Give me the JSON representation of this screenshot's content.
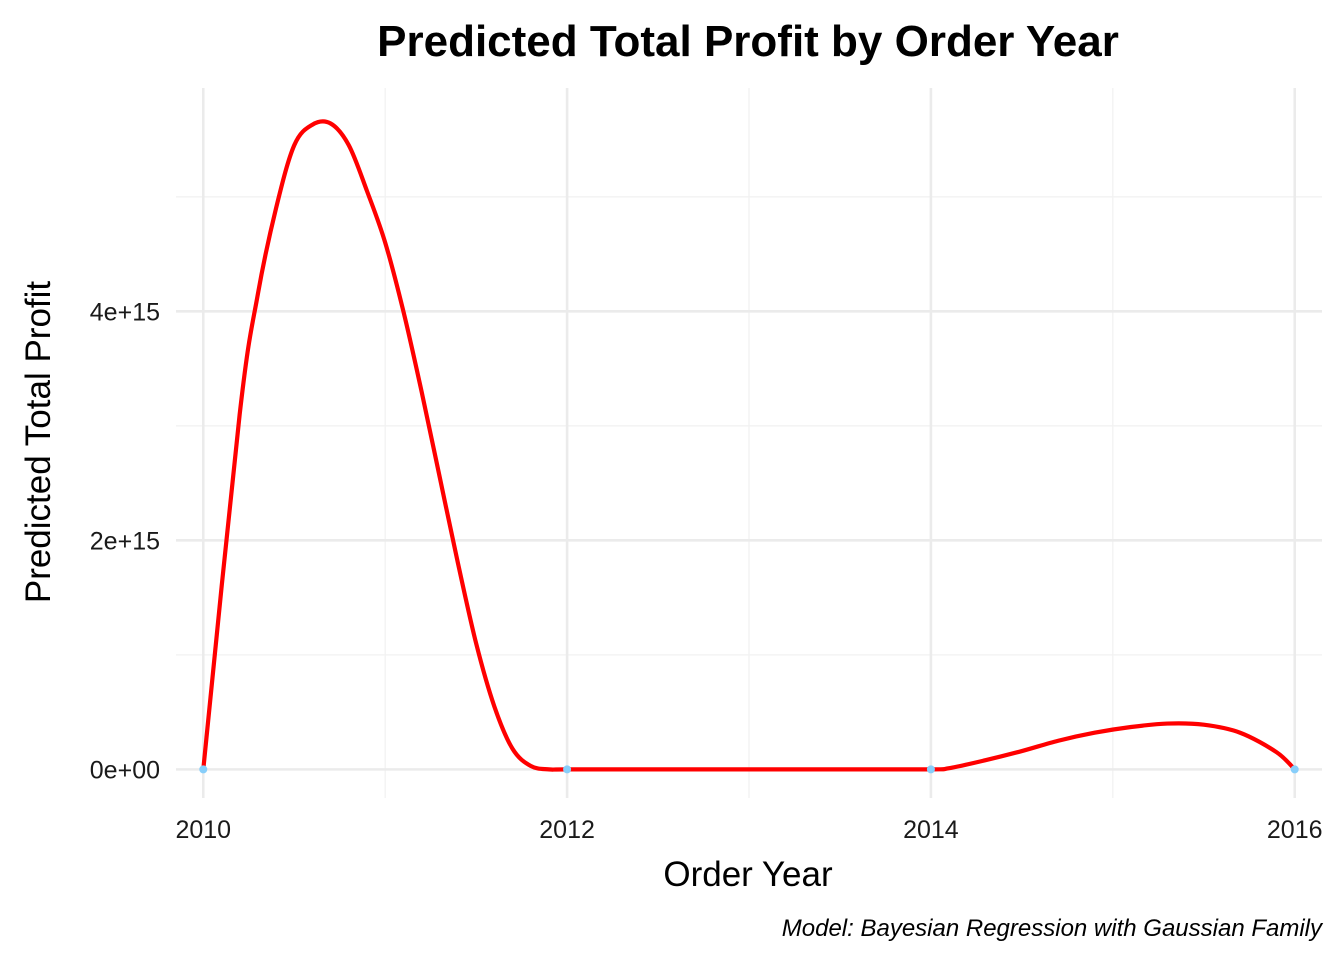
{
  "chart_data": {
    "type": "line",
    "title": "Predicted Total Profit by Order Year",
    "xlabel": "Order Year",
    "ylabel": "Predicted Total Profit",
    "caption": "Model: Bayesian Regression with Gaussian Family",
    "xlim": [
      2009.85,
      2016.15
    ],
    "ylim": [
      -250000000000000.0,
      5950000000000000.0
    ],
    "x_ticks": [
      2010,
      2012,
      2014,
      2016
    ],
    "x_tick_labels": [
      "2010",
      "2012",
      "2014",
      "2016"
    ],
    "y_ticks": [
      0,
      2000000000000000.0,
      4000000000000000.0
    ],
    "y_tick_labels": [
      "0e+00",
      "2e+15",
      "4e+15"
    ],
    "x_minor_ticks": [
      2011,
      2013,
      2015
    ],
    "y_minor_ticks": [
      1000000000000000.0,
      3000000000000000.0,
      5000000000000000.0
    ],
    "grid": true,
    "legend": "none",
    "colors": {
      "line": "#ff0000",
      "points": "#87cefa",
      "grid": "#ebebeb"
    },
    "points": {
      "x": [
        2010,
        2012,
        2014,
        2016
      ],
      "y": [
        0,
        0,
        0,
        0
      ]
    },
    "series": [
      {
        "x": [
          2010.0,
          2010.2,
          2010.3,
          2010.4,
          2010.5,
          2010.6,
          2010.7,
          2010.8,
          2010.9,
          2011.0,
          2011.1,
          2011.2,
          2011.3,
          2011.4,
          2011.5,
          2011.6,
          2011.7,
          2011.8,
          2011.9,
          2012.0,
          2012.5,
          2013.0,
          2013.5,
          2014.0,
          2014.1,
          2014.3,
          2014.5,
          2014.7,
          2014.9,
          2015.1,
          2015.3,
          2015.5,
          2015.7,
          2015.9,
          2016.0
        ],
        "y": [
          0,
          3100000000000000.0,
          4150000000000000.0,
          4900000000000000.0,
          5450000000000000.0,
          5630000000000000.0,
          5640000000000000.0,
          5450000000000000.0,
          5050000000000000.0,
          4600000000000000.0,
          4000000000000000.0,
          3300000000000000.0,
          2550000000000000.0,
          1800000000000000.0,
          1100000000000000.0,
          550000000000000.0,
          180000000000000.0,
          30000000000000.0,
          0,
          0,
          0,
          0,
          0,
          0,
          10000000000000.0,
          80000000000000.0,
          160000000000000.0,
          250000000000000.0,
          320000000000000.0,
          370000000000000.0,
          400000000000000.0,
          390000000000000.0,
          320000000000000.0,
          150000000000000.0,
          0
        ]
      }
    ]
  }
}
